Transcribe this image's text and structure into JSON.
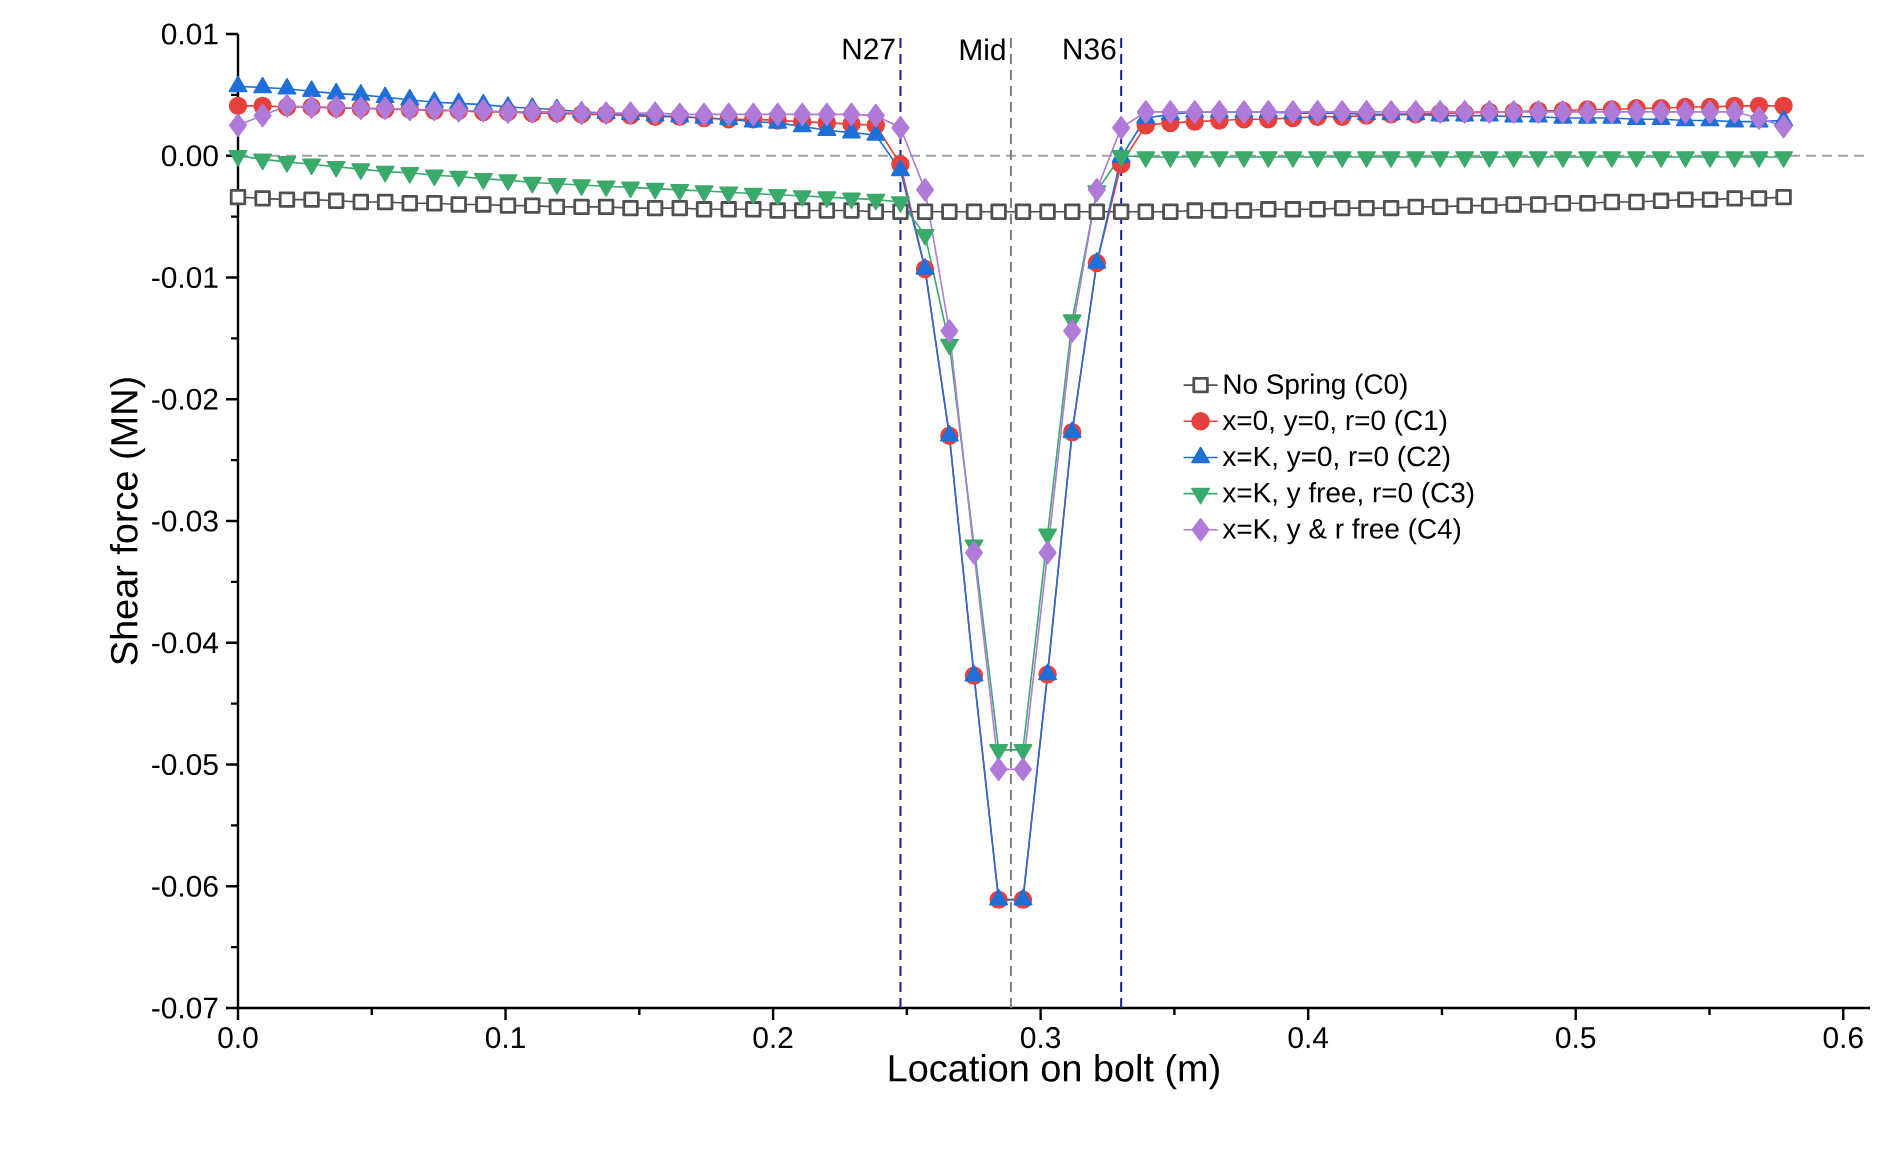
{
  "chart_data": {
    "type": "line",
    "xlabel": "Location on bolt (m)",
    "ylabel": "Shear force (MN)",
    "x": [
      0,
      0.0092,
      0.0183,
      0.0275,
      0.0367,
      0.0459,
      0.055,
      0.0642,
      0.0734,
      0.0825,
      0.0917,
      0.1009,
      0.11,
      0.1192,
      0.1284,
      0.1376,
      0.1467,
      0.1559,
      0.1651,
      0.1742,
      0.1834,
      0.1926,
      0.2017,
      0.2109,
      0.2201,
      0.2293,
      0.2384,
      0.2476,
      0.2568,
      0.2659,
      0.2751,
      0.2843,
      0.2934,
      0.3026,
      0.3118,
      0.321,
      0.3301,
      0.3393,
      0.3485,
      0.3576,
      0.3668,
      0.376,
      0.3851,
      0.3943,
      0.4035,
      0.4127,
      0.4218,
      0.431,
      0.4402,
      0.4493,
      0.4585,
      0.4677,
      0.4768,
      0.486,
      0.4952,
      0.5044,
      0.5135,
      0.5227,
      0.5319,
      0.541,
      0.5502,
      0.5594,
      0.5685,
      0.5777
    ],
    "series": [
      {
        "name": "No Spring (C0)",
        "color": "#505050",
        "marker": "square-open",
        "values": [
          -0.0034,
          -0.0035,
          -0.0036,
          -0.0036,
          -0.0037,
          -0.0038,
          -0.0038,
          -0.0039,
          -0.0039,
          -0.004,
          -0.004,
          -0.0041,
          -0.0041,
          -0.0042,
          -0.0042,
          -0.0042,
          -0.0043,
          -0.0043,
          -0.0043,
          -0.0044,
          -0.0044,
          -0.0044,
          -0.0045,
          -0.0045,
          -0.0045,
          -0.0045,
          -0.0046,
          -0.0046,
          -0.0046,
          -0.0046,
          -0.0046,
          -0.0046,
          -0.0046,
          -0.0046,
          -0.0046,
          -0.0046,
          -0.0046,
          -0.0046,
          -0.0046,
          -0.0045,
          -0.0045,
          -0.0045,
          -0.0044,
          -0.0044,
          -0.0044,
          -0.0043,
          -0.0043,
          -0.0043,
          -0.0042,
          -0.0042,
          -0.0041,
          -0.0041,
          -0.004,
          -0.004,
          -0.0039,
          -0.0039,
          -0.0038,
          -0.0038,
          -0.0037,
          -0.0036,
          -0.0036,
          -0.0035,
          -0.0035,
          -0.0034
        ]
      },
      {
        "name": "x=0, y=0, r=0 (C1)",
        "color": "#e8403c",
        "marker": "circle",
        "values": [
          0.0041,
          0.0041,
          0.004,
          0.004,
          0.0039,
          0.0039,
          0.0038,
          0.0038,
          0.0037,
          0.0037,
          0.0036,
          0.0036,
          0.0035,
          0.0035,
          0.0034,
          0.0034,
          0.0033,
          0.0032,
          0.0032,
          0.0031,
          0.003,
          0.003,
          0.0029,
          0.0028,
          0.0027,
          0.0026,
          0.0025,
          -0.0007,
          -0.0093,
          -0.023,
          -0.0427,
          -0.0611,
          -0.0611,
          -0.0426,
          -0.0227,
          -0.0088,
          -0.0007,
          0.0025,
          0.0027,
          0.0028,
          0.0029,
          0.003,
          0.003,
          0.0031,
          0.0032,
          0.0032,
          0.0033,
          0.0034,
          0.0034,
          0.0035,
          0.0035,
          0.0036,
          0.0036,
          0.0037,
          0.0037,
          0.0038,
          0.0038,
          0.0039,
          0.0039,
          0.004,
          0.004,
          0.0041,
          0.0041,
          0.0041
        ]
      },
      {
        "name": "x=K, y=0, r=0 (C2)",
        "color": "#1f6fd8",
        "marker": "triangle",
        "values": [
          0.0057,
          0.0056,
          0.0055,
          0.0053,
          0.0051,
          0.005,
          0.0048,
          0.0046,
          0.0044,
          0.0043,
          0.0042,
          0.004,
          0.0039,
          0.0038,
          0.0036,
          0.0035,
          0.0034,
          0.0033,
          0.0032,
          0.0031,
          0.003,
          0.0028,
          0.0027,
          0.0024,
          0.0021,
          0.0019,
          0.0017,
          -0.0012,
          -0.0093,
          -0.023,
          -0.0427,
          -0.0611,
          -0.0611,
          -0.0426,
          -0.0227,
          -0.0088,
          -0.0001,
          0.0031,
          0.0034,
          0.0036,
          0.0036,
          0.0036,
          0.0036,
          0.0035,
          0.0035,
          0.0035,
          0.0034,
          0.0034,
          0.0034,
          0.0033,
          0.0033,
          0.0033,
          0.0032,
          0.0032,
          0.0031,
          0.0031,
          0.0031,
          0.003,
          0.003,
          0.0029,
          0.0029,
          0.0028,
          0.0028,
          0.0029
        ]
      },
      {
        "name": "x=K, y free, r=0 (C3)",
        "color": "#3aaa6a",
        "marker": "triangle-down",
        "values": [
          0.0,
          -0.0003,
          -0.0005,
          -0.0007,
          -0.0009,
          -0.0011,
          -0.0013,
          -0.0014,
          -0.0016,
          -0.0017,
          -0.0019,
          -0.002,
          -0.0022,
          -0.0023,
          -0.0024,
          -0.0025,
          -0.0026,
          -0.0027,
          -0.0028,
          -0.0029,
          -0.003,
          -0.0031,
          -0.0032,
          -0.0033,
          -0.0034,
          -0.0035,
          -0.0036,
          -0.0038,
          -0.0065,
          -0.0155,
          -0.032,
          -0.0488,
          -0.0488,
          -0.0311,
          -0.0135,
          -0.0029,
          0.0,
          -0.0001,
          -0.0001,
          -0.0001,
          -0.0001,
          -0.0001,
          -0.0001,
          -0.0001,
          -0.0001,
          -0.0001,
          -0.0001,
          -0.0001,
          -0.0001,
          -0.0001,
          -0.0001,
          -0.0001,
          -0.0001,
          -0.0001,
          -0.0001,
          -0.0001,
          -0.0001,
          -0.0001,
          -0.0001,
          -0.0001,
          -0.0001,
          -0.0001,
          -0.0001,
          -0.0001
        ]
      },
      {
        "name": "x=K, y & r free (C4)",
        "color": "#b07ad8",
        "marker": "diamond",
        "values": [
          0.0025,
          0.0033,
          0.0041,
          0.004,
          0.004,
          0.0039,
          0.0039,
          0.0038,
          0.0038,
          0.0037,
          0.0037,
          0.0036,
          0.0036,
          0.0036,
          0.0035,
          0.0035,
          0.0035,
          0.0035,
          0.0034,
          0.0034,
          0.0034,
          0.0034,
          0.0034,
          0.0034,
          0.0034,
          0.0034,
          0.0033,
          0.0023,
          -0.0028,
          -0.0144,
          -0.0326,
          -0.0504,
          -0.0504,
          -0.0326,
          -0.0144,
          -0.0028,
          0.0023,
          0.0036,
          0.0036,
          0.0036,
          0.0036,
          0.0036,
          0.0036,
          0.0036,
          0.0036,
          0.0036,
          0.0036,
          0.0036,
          0.0036,
          0.0036,
          0.0036,
          0.0036,
          0.0036,
          0.0036,
          0.0036,
          0.0036,
          0.0036,
          0.0036,
          0.0036,
          0.0036,
          0.0036,
          0.0036,
          0.0031,
          0.0024
        ]
      }
    ],
    "xlim": [
      0,
      0.61
    ],
    "ylim": [
      -0.07,
      0.01
    ],
    "xticks": [
      {
        "value": 0,
        "label": "0.0"
      },
      0.1,
      0.2,
      0.3,
      0.4,
      0.5,
      0.6
    ],
    "yticks": [
      0.01,
      {
        "value": 0,
        "label": "0.00"
      },
      -0.01,
      -0.02,
      -0.03,
      -0.04,
      -0.05,
      -0.06,
      -0.07
    ],
    "ref_lines": [
      {
        "axis": "y",
        "value": 0,
        "color": "#a0a0a0",
        "line_style": "dashed"
      },
      {
        "axis": "x",
        "value": 0.2476,
        "label": "N27",
        "color": "#1a1aa0",
        "line_style": "dashed"
      },
      {
        "axis": "x",
        "value": 0.2889,
        "label": "Mid",
        "color": "#808080",
        "line_style": "dashed"
      },
      {
        "axis": "x",
        "value": 0.3301,
        "label": "N36",
        "color": "#1a1aa0",
        "line_style": "dashed"
      }
    ],
    "legend": "right",
    "grid": false
  }
}
